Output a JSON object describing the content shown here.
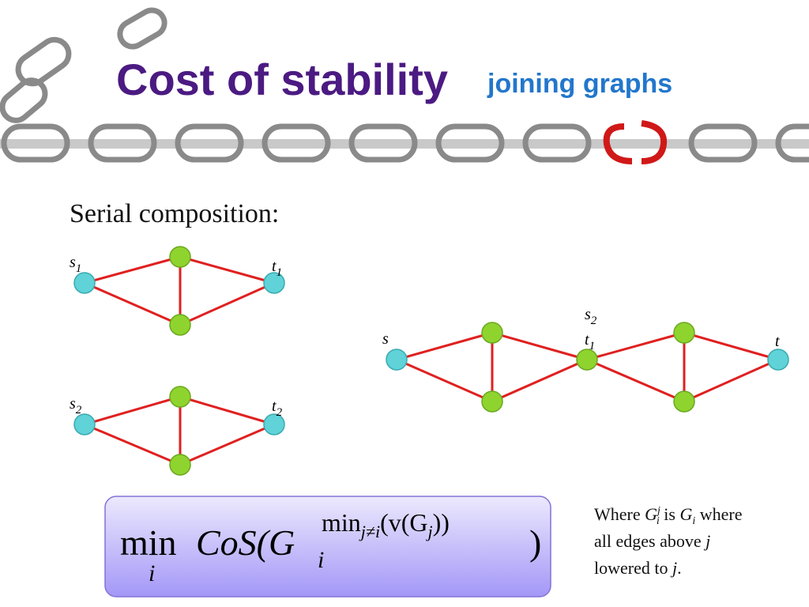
{
  "header": {
    "title": "Cost of stability",
    "subtitle": "joining graphs"
  },
  "body": {
    "heading": "Serial composition:"
  },
  "graphs": [
    {
      "labels": [
        {
          "base": "s",
          "sub": "1"
        },
        {
          "base": "t",
          "sub": "1"
        }
      ]
    },
    {
      "labels": [
        {
          "base": "s",
          "sub": "2"
        },
        {
          "base": "t",
          "sub": "2"
        }
      ]
    },
    {
      "labels": [
        {
          "base": "s"
        },
        {
          "base": "s",
          "sub": "2"
        },
        {
          "base": "t",
          "sub": "1"
        },
        {
          "base": "t"
        }
      ]
    }
  ],
  "formula": {
    "op": "min",
    "op_sub": "i",
    "func": "CoS(G",
    "base_sub": "i",
    "exp_op": "min",
    "exp_sub": "j≠i",
    "exp_arg": "(v(G",
    "exp_arg_sub": "j",
    "exp_close": "))",
    "close": ")"
  },
  "note": {
    "lines": [
      [
        "Where ",
        "G",
        "j",
        "i",
        " is ",
        "G",
        "i",
        " where"
      ],
      [
        "all edges above ",
        "j"
      ],
      [
        "lowered to ",
        "j",
        "."
      ]
    ]
  }
}
